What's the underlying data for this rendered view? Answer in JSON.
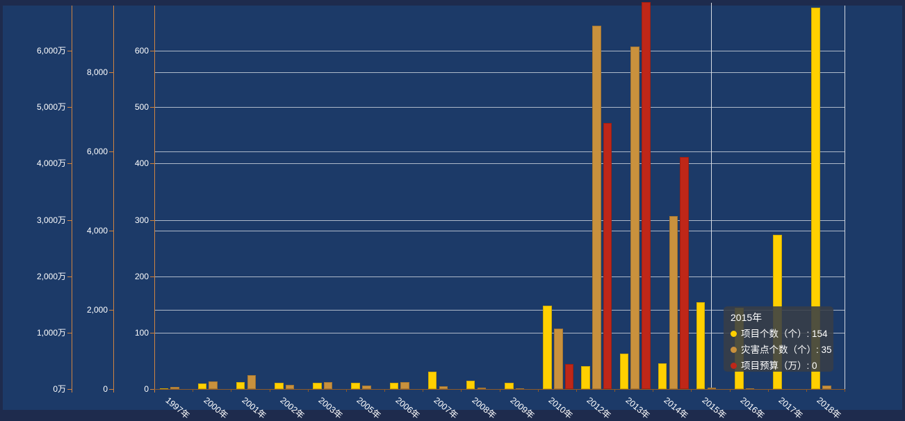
{
  "chart_data": {
    "type": "bar",
    "title": "",
    "legend_position": "none",
    "grid": true,
    "categories": [
      "1997年",
      "2000年",
      "2001年",
      "2002年",
      "2003年",
      "2005年",
      "2006年",
      "2007年",
      "2008年",
      "2009年",
      "2010年",
      "2012年",
      "2013年",
      "2014年",
      "2015年",
      "2016年",
      "2017年",
      "2018年"
    ],
    "series": [
      {
        "id": "projects",
        "name": "项目个数（个）",
        "color": "#FFD000",
        "axis": "count",
        "values": [
          2,
          10,
          13,
          11,
          12,
          12,
          12,
          31,
          15,
          12,
          148,
          41,
          63,
          46,
          154,
          145,
          273,
          676
        ]
      },
      {
        "id": "points",
        "name": "灾害点个数（个）",
        "color": "#C9913D",
        "axis": "points",
        "values": [
          50,
          205,
          360,
          115,
          185,
          100,
          185,
          80,
          42,
          30,
          1530,
          9160,
          8640,
          4375,
          35,
          25,
          0,
          90
        ]
      },
      {
        "id": "budget",
        "name": "项目预算（万）",
        "color": "#BF2718",
        "axis": "budget",
        "values": [
          0,
          0,
          0,
          0,
          0,
          0,
          0,
          0,
          0,
          0,
          450,
          4720,
          6860,
          4110,
          0,
          0,
          0,
          0
        ]
      }
    ],
    "y_axes": [
      {
        "id": "budget",
        "position": "outer-left",
        "range": [
          0,
          6000
        ],
        "unit": "万",
        "labels": [
          "0万",
          "1,000万",
          "2,000万",
          "3,000万",
          "4,000万",
          "5,000万",
          "6,000万"
        ]
      },
      {
        "id": "points",
        "position": "middle-left",
        "range": [
          0,
          8000
        ],
        "unit": "",
        "labels": [
          "0",
          "2,000",
          "4,000",
          "6,000",
          "8,000"
        ]
      },
      {
        "id": "count",
        "position": "inner-left",
        "range": [
          0,
          600
        ],
        "unit": "",
        "labels": [
          "0",
          "100",
          "200",
          "300",
          "400",
          "500",
          "600"
        ]
      }
    ],
    "highlighted_category": "2015年"
  },
  "tooltip": {
    "title": "2015年",
    "rows": [
      {
        "color": "#FFD000",
        "text": "项目个数（个）: 154"
      },
      {
        "color": "#C9913D",
        "text": "灾害点个数（个）: 35"
      },
      {
        "color": "#BF2718",
        "text": "项目预算（万）: 0"
      }
    ]
  },
  "colors": {
    "plot_bg": "#1c3a68",
    "frame_bg": "#1e2b4d",
    "y_axis_line": "#D08440",
    "x_axis_line": "#8f5a28",
    "gridline": "rgba(255,255,255,0.65)",
    "plot_border": "rgba(255,255,255,0.8)",
    "crosshair": "#d8dde4",
    "text": "#ffffff",
    "tooltip_bg": "rgba(56,61,71,0.88)"
  }
}
